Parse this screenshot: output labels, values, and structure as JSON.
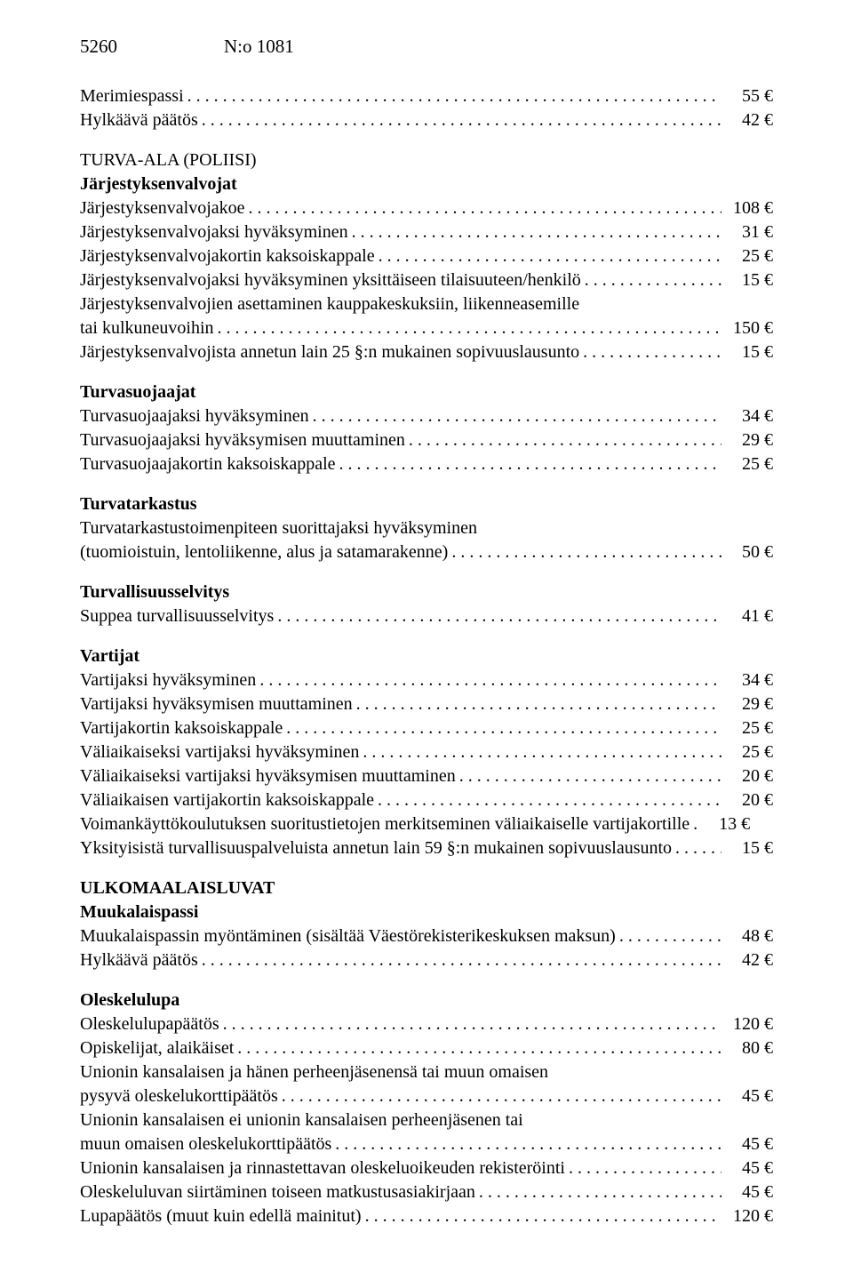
{
  "header": {
    "page_number": "5260",
    "doc_number": "N:o 1081"
  },
  "currency": "€",
  "blocks": [
    {
      "lines": [
        {
          "label": "Merimiespassi",
          "price": "55"
        },
        {
          "label": "Hylkäävä päätös",
          "price": "42"
        }
      ]
    },
    {
      "heading": "TURVA-ALA (POLIISI)",
      "lines": []
    },
    {
      "heading_bold": "Järjestyksenvalvojat",
      "lines": [
        {
          "label": "Järjestyksenvalvojakoe",
          "price": "108"
        },
        {
          "label": "Järjestyksenvalvojaksi hyväksyminen",
          "price": "31"
        },
        {
          "label": "Järjestyksenvalvojakortin kaksoiskappale",
          "price": "25"
        },
        {
          "label": "Järjestyksenvalvojaksi hyväksyminen yksittäiseen tilaisuuteen/henkilö",
          "price": "15"
        },
        {
          "label_only": "Järjestyksenvalvojien asettaminen kauppakeskuksiin, liikenneasemille"
        },
        {
          "label": "tai kulkuneuvoihin",
          "price": "150"
        },
        {
          "label": "Järjestyksenvalvojista annetun lain 25 §:n mukainen sopivuuslausunto",
          "price": "15"
        }
      ]
    },
    {
      "heading_bold": "Turvasuojaajat",
      "lines": [
        {
          "label": "Turvasuojaajaksi hyväksyminen",
          "price": "34"
        },
        {
          "label": "Turvasuojaajaksi hyväksymisen muuttaminen",
          "price": "29"
        },
        {
          "label": "Turvasuojaajakortin kaksoiskappale",
          "price": "25"
        }
      ]
    },
    {
      "heading_bold": "Turvatarkastus",
      "lines": [
        {
          "label_only": "Turvatarkastustoimenpiteen suorittajaksi hyväksyminen"
        },
        {
          "label": "(tuomioistuin, lentoliikenne, alus ja satamarakenne)",
          "price": "50"
        }
      ]
    },
    {
      "heading_bold": "Turvallisuusselvitys",
      "lines": [
        {
          "label": "Suppea turvallisuusselvitys",
          "price": "41"
        }
      ]
    },
    {
      "heading_bold": "Vartijat",
      "lines": [
        {
          "label": "Vartijaksi hyväksyminen",
          "price": "34"
        },
        {
          "label": "Vartijaksi hyväksymisen muuttaminen",
          "price": "29"
        },
        {
          "label": "Vartijakortin kaksoiskappale",
          "price": "25"
        },
        {
          "label": "Väliaikaiseksi vartijaksi hyväksyminen",
          "price": "25"
        },
        {
          "label": "Väliaikaiseksi vartijaksi hyväksymisen muuttaminen",
          "price": "20"
        },
        {
          "label": "Väliaikaisen vartijakortin kaksoiskappale",
          "price": "20"
        },
        {
          "label": "Voimankäyttökoulutuksen suoritustietojen merkitseminen väliaikaiselle vartijakortille",
          "price": "13",
          "tight": true
        },
        {
          "label": "Yksityisistä turvallisuuspalveluista annetun lain 59 §:n mukainen sopivuuslausunto",
          "price": "15"
        }
      ]
    },
    {
      "heading_bold": "ULKOMAALAISLUVAT",
      "lines": []
    },
    {
      "heading_bold": "Muukalaispassi",
      "lines": [
        {
          "label": "Muukalaispassin myöntäminen (sisältää Väestörekisterikeskuksen maksun)",
          "price": "48"
        },
        {
          "label": "Hylkäävä päätös",
          "price": "42"
        }
      ]
    },
    {
      "heading_bold": "Oleskelulupa",
      "lines": [
        {
          "label": "Oleskelulupapäätös",
          "price": "120"
        },
        {
          "label": "Opiskelijat, alaikäiset",
          "price": "80"
        },
        {
          "label_only": "Unionin kansalaisen ja hänen perheenjäsenensä tai muun omaisen"
        },
        {
          "label": "pysyvä oleskelukorttipäätös",
          "price": "45"
        },
        {
          "label_only": "Unionin kansalaisen ei unionin kansalaisen perheenjäsenen tai"
        },
        {
          "label": "muun omaisen oleskelukorttipäätös",
          "price": "45"
        },
        {
          "label": "Unionin kansalaisen ja rinnastettavan oleskeluoikeuden rekisteröinti",
          "price": "45"
        },
        {
          "label": "Oleskeluluvan siirtäminen toiseen matkustusasiakirjaan",
          "price": "45"
        },
        {
          "label": "Lupapäätös (muut kuin edellä mainitut)",
          "price": "120"
        }
      ]
    }
  ]
}
